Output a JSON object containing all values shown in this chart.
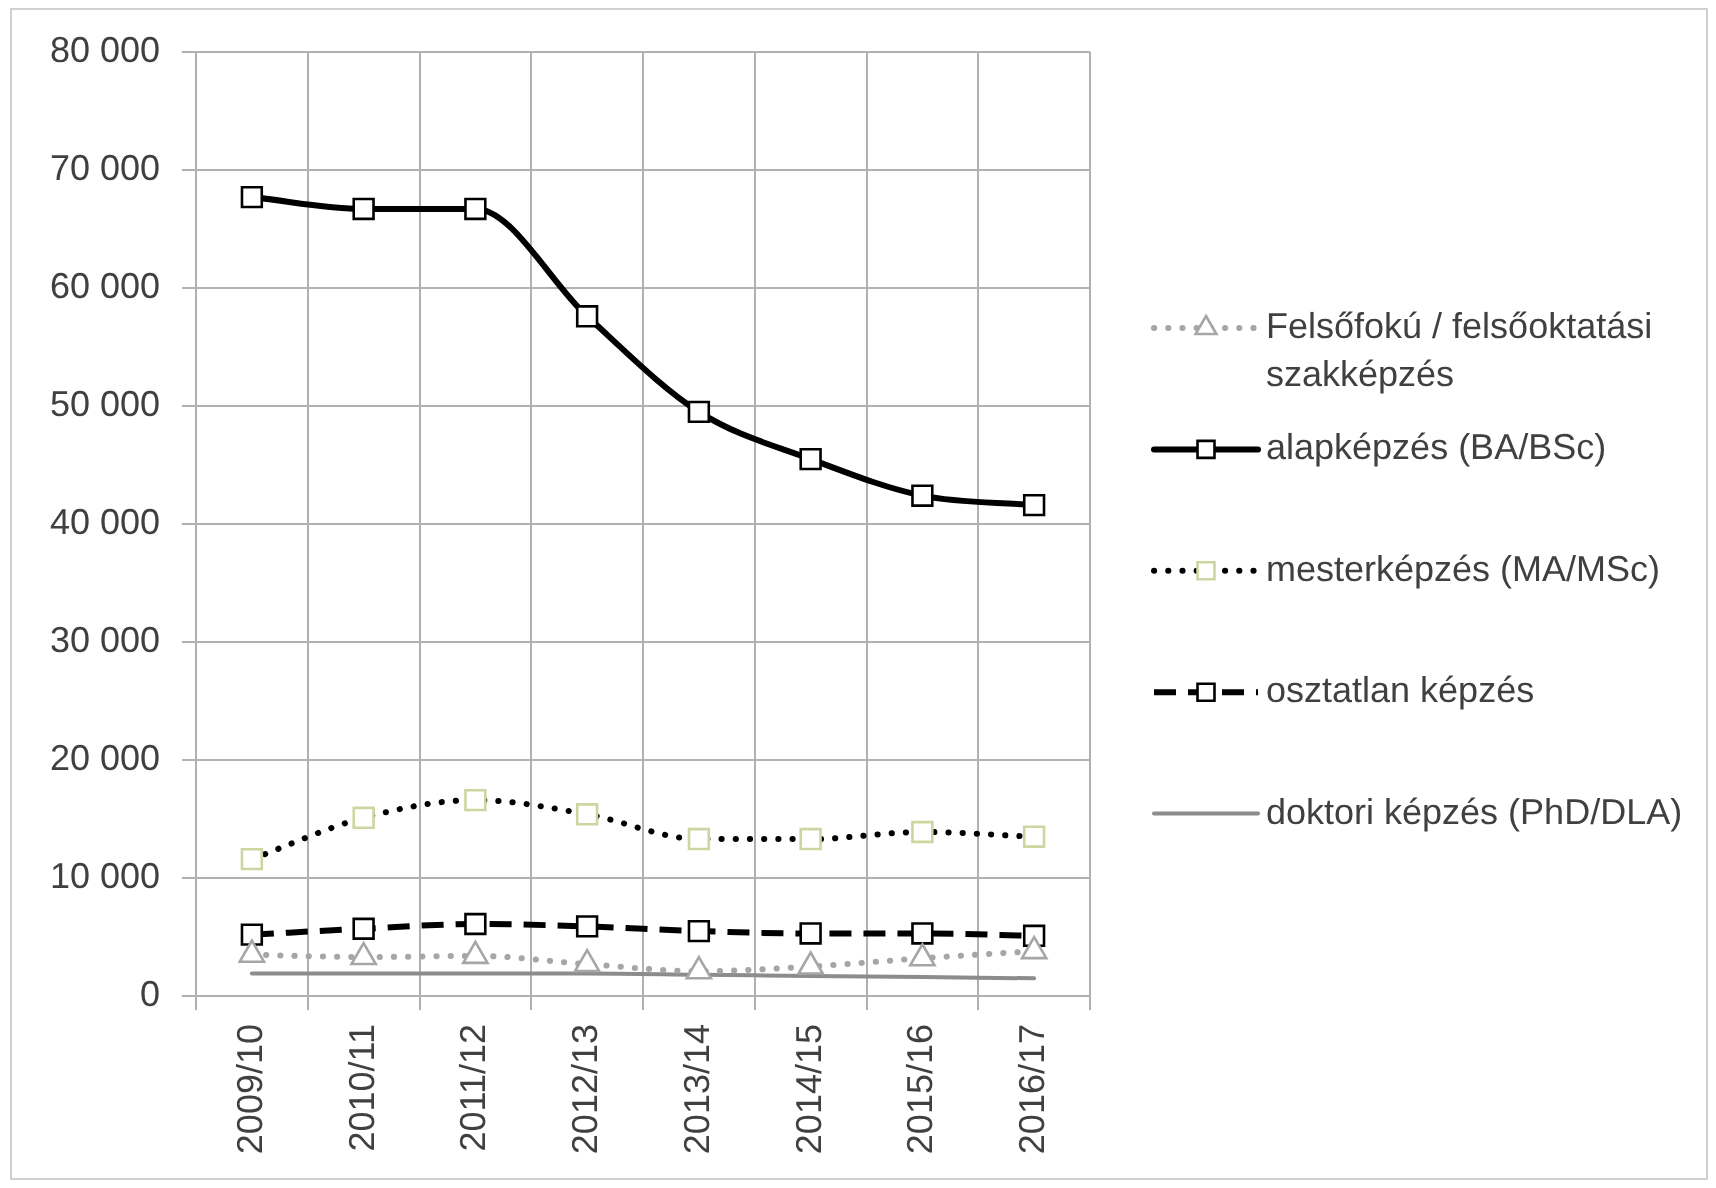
{
  "chart_data": {
    "type": "line",
    "categories": [
      "2009/10",
      "2010/11",
      "2011/12",
      "2012/13",
      "2013/14",
      "2014/15",
      "2015/16",
      "2016/17"
    ],
    "series": [
      {
        "name": "Felsőfokú / felsőoktatási szakképzés",
        "color": "#a6a6a6",
        "values": [
          3500,
          3300,
          3400,
          2700,
          2100,
          2500,
          3200,
          3800
        ],
        "marker": "triangle",
        "line_style": "dotted"
      },
      {
        "name": "alapképzés (BA/BSc)",
        "color": "#000000",
        "values": [
          67700,
          66700,
          66700,
          57600,
          49500,
          45500,
          42400,
          41600
        ],
        "marker": "square",
        "line_style": "solid"
      },
      {
        "name": "mesterképzés (MA/MSc)",
        "color": "#000000",
        "colors": [
          "#cdd6a0",
          "#cdd6a0",
          "#cdd6a0",
          "#cdd6a0",
          "#cdd6a0",
          "#cdd6a0",
          "#cdd6a0",
          "#cdd6a0"
        ],
        "values": [
          11600,
          15100,
          16600,
          15400,
          13300,
          13300,
          13900,
          13500
        ],
        "marker": "square",
        "line_style": "dotted"
      },
      {
        "name": "osztatlan képzés",
        "color": "#000000",
        "values": [
          5200,
          5700,
          6100,
          5900,
          5500,
          5300,
          5300,
          5100
        ],
        "marker": "square",
        "line_style": "dashed"
      },
      {
        "name": "doktori képzés (PhD/DLA)",
        "color": "#8c8c8c",
        "values": [
          1900,
          1900,
          1900,
          1900,
          1800,
          1700,
          1600,
          1500
        ],
        "marker": "none",
        "line_style": "solid"
      }
    ],
    "ylim": [
      0,
      80000
    ],
    "yticks": [
      0,
      {
        "value": 10000,
        "label": "10 000"
      },
      {
        "value": 20000,
        "label": "20 000"
      },
      {
        "value": 30000,
        "label": "30 000"
      },
      {
        "value": 40000,
        "label": "40 000"
      },
      {
        "value": 50000,
        "label": "50 000"
      },
      {
        "value": 60000,
        "label": "60 000"
      },
      {
        "value": 70000,
        "label": "70 000"
      },
      {
        "value": 80000,
        "label": "80 000"
      }
    ],
    "grid": true,
    "legend": "right"
  }
}
